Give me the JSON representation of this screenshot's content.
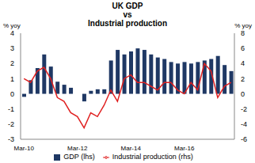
{
  "chart_data": {
    "type": "bar",
    "title": "UK GDP\nvs\nIndustrial production",
    "y_label": "% yoy",
    "y2_label": "% yoy",
    "categories": [
      "Mar-10",
      null,
      null,
      null,
      null,
      null,
      null,
      null,
      "Mar-12",
      null,
      null,
      null,
      null,
      null,
      null,
      null,
      "Mar-14",
      null,
      null,
      null,
      null,
      null,
      null,
      null,
      "Mar-16",
      null,
      null,
      null,
      null,
      null,
      null,
      null
    ],
    "series": [
      {
        "name": "GDP (lhs)",
        "type": "bar",
        "color": "#1f3864",
        "values": [
          -0.2,
          0.9,
          1.7,
          2.6,
          1.8,
          0.8,
          0.6,
          0.4,
          0.0,
          -0.5,
          0.2,
          0.3,
          0.3,
          2.2,
          2.9,
          2.6,
          2.8,
          3.0,
          2.9,
          2.6,
          2.4,
          2.3,
          2.1,
          2.0,
          2.1,
          2.0,
          2.1,
          2.2,
          2.3,
          2.5,
          1.9,
          1.5
        ]
      },
      {
        "name": "Industrial production (rhs)",
        "type": "line",
        "axis": "y2",
        "color": "#e02020",
        "values": [
          2.0,
          1.5,
          3.0,
          3.5,
          2.0,
          -0.5,
          -1.0,
          -2.5,
          -3.0,
          -4.5,
          -2.5,
          -3.0,
          -1.5,
          0.5,
          -1.0,
          2.0,
          2.5,
          1.5,
          1.5,
          1.0,
          0.5,
          1.5,
          1.5,
          0.5,
          0.0,
          1.5,
          0.5,
          4.0,
          3.0,
          -0.5,
          1.0,
          1.5
        ]
      }
    ],
    "ylim": [
      -3,
      4
    ],
    "yticks": [
      -3,
      -2,
      -1,
      0,
      1,
      2,
      3,
      4
    ],
    "y2lim": [
      -6,
      8
    ],
    "y2ticks": [
      -6,
      -4,
      -2,
      0,
      2,
      4,
      6,
      8
    ],
    "grid": false,
    "legend": "bottom"
  }
}
